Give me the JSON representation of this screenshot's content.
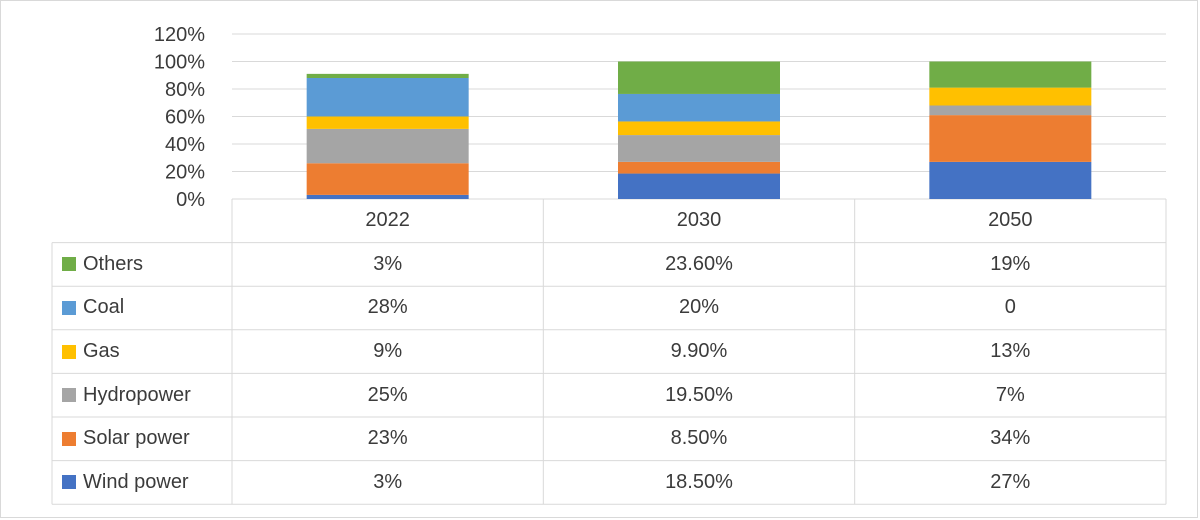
{
  "chart_data": {
    "type": "bar",
    "stacked": true,
    "categories": [
      "2022",
      "2030",
      "2050"
    ],
    "series": [
      {
        "name": "Wind power",
        "color": "#4472c4",
        "values": [
          3,
          18.5,
          27
        ],
        "labels": [
          "3%",
          "18.50%",
          "27%"
        ]
      },
      {
        "name": "Solar power",
        "color": "#ed7d31",
        "values": [
          23,
          8.5,
          34
        ],
        "labels": [
          "23%",
          "8.50%",
          "34%"
        ]
      },
      {
        "name": "Hydropower",
        "color": "#a5a5a5",
        "values": [
          25,
          19.5,
          7
        ],
        "labels": [
          "25%",
          "19.50%",
          "7%"
        ]
      },
      {
        "name": "Gas",
        "color": "#ffc000",
        "values": [
          9,
          9.9,
          13
        ],
        "labels": [
          "9%",
          "9.90%",
          "13%"
        ]
      },
      {
        "name": "Coal",
        "color": "#5b9bd5",
        "values": [
          28,
          20,
          0
        ],
        "labels": [
          "28%",
          "20%",
          "0"
        ]
      },
      {
        "name": "Others",
        "color": "#70ad47",
        "values": [
          3,
          23.6,
          19
        ],
        "labels": [
          "3%",
          "23.60%",
          "19%"
        ]
      }
    ],
    "ylim": [
      0,
      120
    ],
    "yticks": [
      0,
      20,
      40,
      60,
      80,
      100,
      120
    ],
    "ytick_labels": [
      "0%",
      "20%",
      "40%",
      "60%",
      "80%",
      "100%",
      "120%"
    ],
    "grid": true,
    "legend": "data table below chart",
    "title": "",
    "xlabel": "",
    "ylabel": ""
  }
}
